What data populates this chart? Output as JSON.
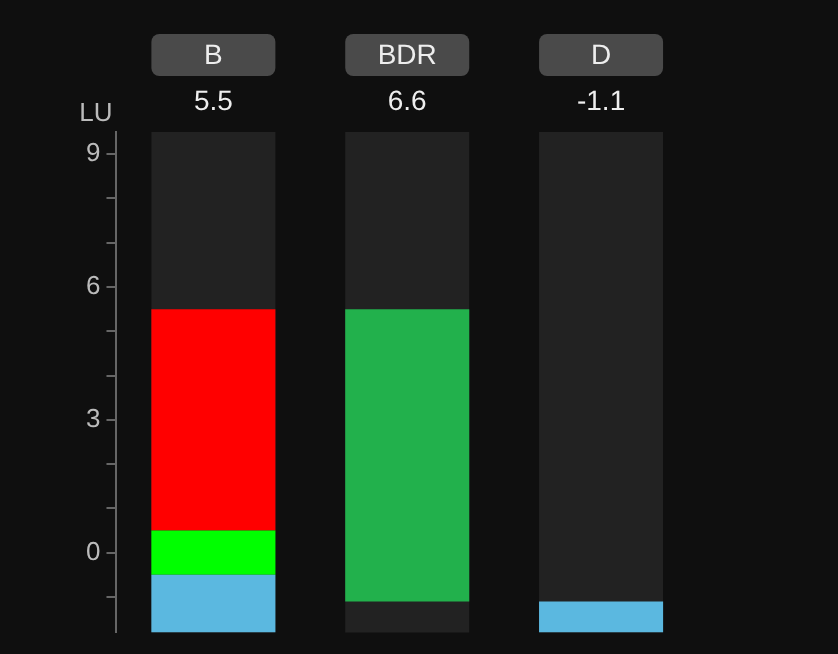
{
  "chart_data": {
    "type": "bar",
    "ylabel": "LU",
    "categories": [
      "B",
      "BDR",
      "D"
    ],
    "series": [
      {
        "color": "#5bb8e0",
        "base": [
          -1.8,
          null,
          -1.8
        ],
        "values": [
          1.3,
          null,
          0.7
        ]
      },
      {
        "color": "#00ff00",
        "base": [
          -0.5,
          null,
          null
        ],
        "values": [
          1,
          null,
          null
        ]
      },
      {
        "color": "#ff0000",
        "base": [
          0.5,
          null,
          null
        ],
        "values": [
          5,
          null,
          null
        ]
      },
      {
        "color": "#22b14c",
        "base": [
          null,
          -1.1,
          null
        ],
        "values": [
          null,
          6.6,
          null
        ]
      }
    ],
    "annotations": [
      "5.5",
      "6.6",
      "-1.1"
    ],
    "ylim": [
      -1.8,
      9.5
    ],
    "yticks": [
      {
        "value": -1,
        "label": null
      },
      0,
      {
        "value": 1,
        "label": null
      },
      {
        "value": 2,
        "label": null
      },
      3,
      {
        "value": 4,
        "label": null
      },
      {
        "value": 5,
        "label": null
      },
      6,
      {
        "value": 7,
        "label": null
      },
      {
        "value": 8,
        "label": null
      },
      9
    ],
    "grid": false,
    "legend": false
  }
}
